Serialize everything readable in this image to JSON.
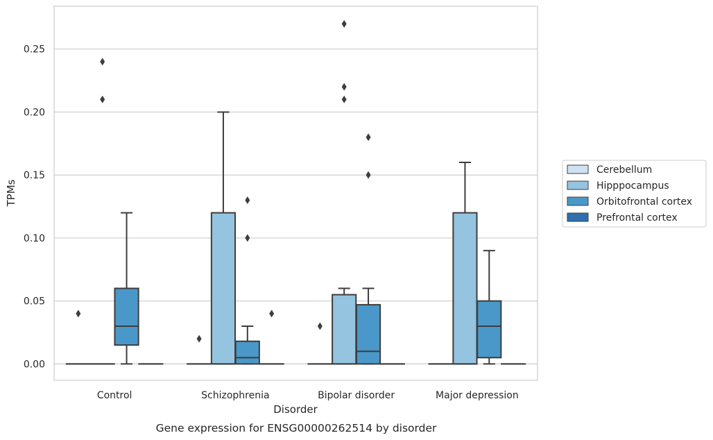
{
  "chart_data": {
    "type": "box",
    "caption": "Gene expression for ENSG00000262514 by disorder",
    "xlabel": "Disorder",
    "ylabel": "TPMs",
    "ylim": [
      -0.013,
      0.284
    ],
    "yticks": [
      0.0,
      0.05,
      0.1,
      0.15,
      0.2,
      0.25
    ],
    "ytick_labels": [
      "0.00",
      "0.05",
      "0.10",
      "0.15",
      "0.20",
      "0.25"
    ],
    "grid": "horizontal",
    "legend_position": "right, outside",
    "categories": [
      "Control",
      "Schizophrenia",
      "Bipolar disorder",
      "Major depression"
    ],
    "series": [
      {
        "name": "Cerebellum",
        "color": "#d0e1f2",
        "boxes": [
          {
            "category": "Control",
            "q1": 0,
            "median": 0,
            "q3": 0,
            "whisker_low": 0,
            "whisker_high": 0,
            "outliers": [
              0.04
            ]
          },
          {
            "category": "Schizophrenia",
            "q1": 0,
            "median": 0,
            "q3": 0,
            "whisker_low": 0,
            "whisker_high": 0,
            "outliers": [
              0.02
            ]
          },
          {
            "category": "Bipolar disorder",
            "q1": 0,
            "median": 0,
            "q3": 0,
            "whisker_low": 0,
            "whisker_high": 0,
            "outliers": [
              0.03
            ]
          },
          {
            "category": "Major depression",
            "q1": 0,
            "median": 0,
            "q3": 0,
            "whisker_low": 0,
            "whisker_high": 0,
            "outliers": []
          }
        ]
      },
      {
        "name": "Hipppocampus",
        "color": "#94c4df",
        "boxes": [
          {
            "category": "Control",
            "q1": 0,
            "median": 0,
            "q3": 0,
            "whisker_low": 0,
            "whisker_high": 0,
            "outliers": [
              0.21,
              0.24
            ]
          },
          {
            "category": "Schizophrenia",
            "q1": 0,
            "median": 0,
            "q3": 0.12,
            "whisker_low": 0,
            "whisker_high": 0.2,
            "outliers": []
          },
          {
            "category": "Bipolar disorder",
            "q1": 0,
            "median": 0,
            "q3": 0.055,
            "whisker_low": 0,
            "whisker_high": 0.06,
            "outliers": [
              0.21,
              0.22,
              0.27
            ]
          },
          {
            "category": "Major depression",
            "q1": 0,
            "median": 0,
            "q3": 0.12,
            "whisker_low": 0,
            "whisker_high": 0.16,
            "outliers": []
          }
        ]
      },
      {
        "name": "Orbitofrontal cortex",
        "color": "#4a98c9",
        "boxes": [
          {
            "category": "Control",
            "q1": 0.015,
            "median": 0.03,
            "q3": 0.06,
            "whisker_low": 0,
            "whisker_high": 0.12,
            "outliers": []
          },
          {
            "category": "Schizophrenia",
            "q1": 0,
            "median": 0.005,
            "q3": 0.018,
            "whisker_low": 0,
            "whisker_high": 0.03,
            "outliers": [
              0.1,
              0.13
            ]
          },
          {
            "category": "Bipolar disorder",
            "q1": 0,
            "median": 0.01,
            "q3": 0.047,
            "whisker_low": 0,
            "whisker_high": 0.06,
            "outliers": [
              0.15,
              0.18
            ]
          },
          {
            "category": "Major depression",
            "q1": 0.005,
            "median": 0.03,
            "q3": 0.05,
            "whisker_low": 0,
            "whisker_high": 0.09,
            "outliers": []
          }
        ]
      },
      {
        "name": "Prefrontal cortex",
        "color": "#2e6fae",
        "boxes": [
          {
            "category": "Control",
            "q1": 0,
            "median": 0,
            "q3": 0,
            "whisker_low": 0,
            "whisker_high": 0,
            "outliers": []
          },
          {
            "category": "Schizophrenia",
            "q1": 0,
            "median": 0,
            "q3": 0,
            "whisker_low": 0,
            "whisker_high": 0,
            "outliers": [
              0.04
            ]
          },
          {
            "category": "Bipolar disorder",
            "q1": 0,
            "median": 0,
            "q3": 0,
            "whisker_low": 0,
            "whisker_high": 0,
            "outliers": []
          },
          {
            "category": "Major depression",
            "q1": 0,
            "median": 0,
            "q3": 0,
            "whisker_low": 0,
            "whisker_high": 0,
            "outliers": []
          }
        ]
      }
    ]
  }
}
